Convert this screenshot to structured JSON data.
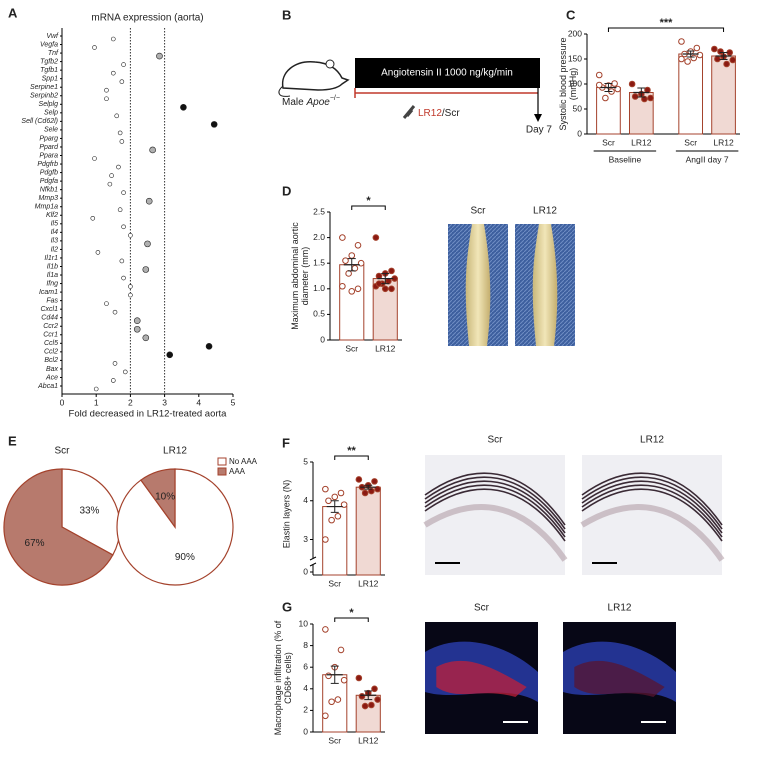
{
  "schematic": {
    "panel": "B",
    "treatment": "Angiotensin II 1000 ng/kg/min",
    "subject": "Male",
    "genotype": "Apoe",
    "genotype_sup": "−/−",
    "drug": "LR12",
    "control": "/Scr",
    "endpoint": "Day 7"
  },
  "chart_data": [
    {
      "panel": "A",
      "type": "dot",
      "title": "mRNA expression (aorta)",
      "xlabel": "Fold decreased in LR12-treated aorta",
      "categories": [
        "Vwf",
        "Vegfa",
        "Tnf",
        "Tgfb2",
        "Tgfb1",
        "Spp1",
        "Serpine1",
        "Serpinb2",
        "Selplg",
        "Selp",
        "Sell (Cd62l)",
        "Sele",
        "Pparg",
        "Ppard",
        "Ppara",
        "Pdgfrb",
        "Pdgfb",
        "Pdgfa",
        "Nfkb1",
        "Mmp3",
        "Mmp1a",
        "Klf2",
        "Il5",
        "Il4",
        "Il3",
        "Il2",
        "Il1r1",
        "Il1b",
        "Il1a",
        "Ifng",
        "Icam1",
        "Fas",
        "Cxcl1",
        "Cd44",
        "Ccr2",
        "Ccr1",
        "Ccl5",
        "Ccl2",
        "Bcl2",
        "Bax",
        "Ace",
        "Abca1"
      ],
      "values": [
        1.5,
        0.95,
        2.85,
        1.8,
        1.5,
        1.75,
        1.3,
        1.3,
        3.55,
        1.6,
        4.45,
        1.7,
        1.75,
        2.65,
        0.95,
        1.65,
        1.45,
        1.4,
        1.8,
        2.55,
        1.7,
        0.9,
        1.8,
        2.0,
        2.5,
        1.05,
        1.75,
        2.45,
        1.8,
        2.0,
        2.0,
        1.3,
        1.55,
        2.2,
        2.2,
        2.45,
        4.3,
        3.15,
        1.55,
        1.85,
        1.5,
        1.0
      ],
      "colors": [
        "#ffffff",
        "#ffffff",
        "#b0b0b0",
        "#ffffff",
        "#ffffff",
        "#ffffff",
        "#ffffff",
        "#ffffff",
        "#111111",
        "#ffffff",
        "#111111",
        "#ffffff",
        "#ffffff",
        "#b0b0b0",
        "#ffffff",
        "#ffffff",
        "#ffffff",
        "#ffffff",
        "#ffffff",
        "#b0b0b0",
        "#ffffff",
        "#ffffff",
        "#ffffff",
        "#ffffff",
        "#b0b0b0",
        "#ffffff",
        "#ffffff",
        "#b0b0b0",
        "#ffffff",
        "#ffffff",
        "#ffffff",
        "#ffffff",
        "#ffffff",
        "#b0b0b0",
        "#b0b0b0",
        "#b0b0b0",
        "#111111",
        "#111111",
        "#ffffff",
        "#ffffff",
        "#ffffff",
        "#ffffff"
      ],
      "xlim": [
        0,
        5
      ],
      "xticks": [
        0,
        1,
        2,
        3,
        4,
        5
      ],
      "reference_lines": [
        2,
        3
      ]
    },
    {
      "panel": "C",
      "type": "bar",
      "ylabel": "Systolic blood pressure (mmHg)",
      "categories": [
        "Scr",
        "LR12",
        "Scr",
        "LR12"
      ],
      "groups": [
        "Baseline",
        "AngII day 7"
      ],
      "values": [
        93,
        83,
        160,
        156
      ],
      "errors": [
        8,
        9,
        6,
        7
      ],
      "points": [
        [
          118,
          101,
          97,
          93,
          90,
          85,
          72,
          98
        ],
        [
          100,
          88,
          80,
          75,
          72,
          70
        ],
        [
          185,
          172,
          165,
          160,
          158,
          152,
          145,
          150
        ],
        [
          170,
          163,
          155,
          150,
          148,
          140,
          165
        ]
      ],
      "bar_colors": [
        "#ffffff",
        "#f0d9d3",
        "#ffffff",
        "#f0d9d3"
      ],
      "point_colors": [
        "#ffffff",
        "#8b1a12",
        "#ffffff",
        "#8b1a12"
      ],
      "edge_color": "#a4422c",
      "ylim": [
        0,
        200
      ],
      "yticks": [
        0,
        50,
        100,
        150,
        200
      ],
      "annotations": [
        {
          "text": "***",
          "between": [
            0,
            3
          ]
        }
      ]
    },
    {
      "panel": "D",
      "type": "bar",
      "ylabel": "Maximum abdominal aortic diameter (mm)",
      "categories": [
        "Scr",
        "LR12"
      ],
      "values": [
        1.47,
        1.2
      ],
      "errors": [
        0.12,
        0.1
      ],
      "points": [
        [
          2.0,
          1.85,
          1.65,
          1.55,
          1.5,
          1.4,
          1.3,
          1.05,
          1.0,
          0.95
        ],
        [
          2.0,
          1.35,
          1.3,
          1.25,
          1.2,
          1.15,
          1.1,
          1.05,
          1.0,
          1.0,
          1.1
        ]
      ],
      "bar_colors": [
        "#ffffff",
        "#f0d9d3"
      ],
      "point_colors": [
        "#ffffff",
        "#8b1a12"
      ],
      "edge_color": "#a4422c",
      "ylim": [
        0,
        2.5
      ],
      "yticks": [
        0,
        0.5,
        {
          "value": 1.0,
          "label": "1.0"
        },
        1.5,
        {
          "value": 2.0,
          "label": "2.0"
        },
        2.5
      ],
      "annotations": [
        {
          "text": "*",
          "between": [
            0,
            1
          ]
        }
      ],
      "image_labels": [
        "Scr",
        "LR12"
      ]
    },
    {
      "panel": "E",
      "type": "pie",
      "categories": [
        "No AAA",
        "AAA"
      ],
      "colors": [
        "#ffffff",
        "#b77a6d"
      ],
      "edge_color": "#a4422c",
      "series": [
        {
          "name": "Scr",
          "values": [
            33,
            67
          ],
          "value_labels": [
            "33%",
            "67%"
          ]
        },
        {
          "name": "LR12",
          "values": [
            90,
            10
          ],
          "value_labels": [
            "90%",
            "10%"
          ]
        }
      ]
    },
    {
      "panel": "F",
      "type": "bar",
      "ylabel": "Elastin layers (N)",
      "categories": [
        "Scr",
        "LR12"
      ],
      "values": [
        3.85,
        4.35
      ],
      "errors": [
        0.15,
        0.05
      ],
      "points": [
        [
          4.3,
          4.2,
          4.1,
          4.0,
          3.9,
          3.6,
          3.5,
          3.0
        ],
        [
          4.55,
          4.5,
          4.4,
          4.35,
          4.3,
          4.25,
          4.2
        ]
      ],
      "bar_colors": [
        "#ffffff",
        "#f0d9d3"
      ],
      "point_colors": [
        "#ffffff",
        "#8b1a12"
      ],
      "edge_color": "#a4422c",
      "ylim": [
        2.6,
        5
      ],
      "yticks": [
        3,
        4,
        5
      ],
      "ybreak": 0,
      "annotations": [
        {
          "text": "**",
          "between": [
            0,
            1
          ]
        }
      ],
      "image_labels": [
        "Scr",
        "LR12"
      ]
    },
    {
      "panel": "G",
      "type": "bar",
      "ylabel": "Macrophage infiltration (% of CD68+ cells)",
      "categories": [
        "Scr",
        "LR12"
      ],
      "values": [
        5.3,
        3.4
      ],
      "errors": [
        0.8,
        0.4
      ],
      "points": [
        [
          9.5,
          7.6,
          6.0,
          5.2,
          4.8,
          3.0,
          2.8,
          1.5
        ],
        [
          5.0,
          4.0,
          3.6,
          3.3,
          3.0,
          2.5,
          2.4
        ]
      ],
      "bar_colors": [
        "#ffffff",
        "#f0d9d3"
      ],
      "point_colors": [
        "#ffffff",
        "#8b1a12"
      ],
      "edge_color": "#a4422c",
      "ylim": [
        0,
        10
      ],
      "yticks": [
        0,
        2,
        4,
        6,
        8,
        10
      ],
      "annotations": [
        {
          "text": "*",
          "between": [
            0,
            1
          ]
        }
      ],
      "image_labels": [
        "Scr",
        "LR12"
      ]
    }
  ]
}
